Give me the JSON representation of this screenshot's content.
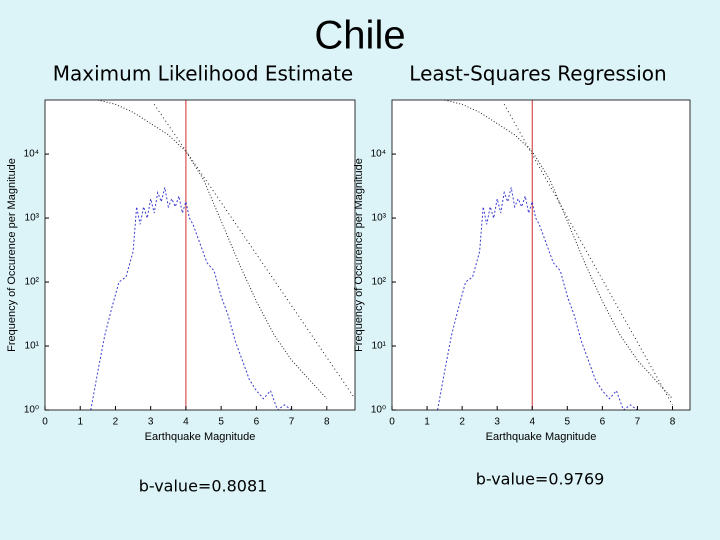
{
  "title": "Chile",
  "chart_data": [
    {
      "type": "line",
      "subtitle": "Maximum Likelihood Estimate",
      "xlabel": "Earthquake Magnitude",
      "ylabel": "Frequency of Occurence per Magnitude",
      "annotation": "b-value=0.8081",
      "xlim": [
        0,
        8.8
      ],
      "xticks": [
        0,
        1,
        2,
        3,
        4,
        5,
        6,
        7,
        8
      ],
      "ylim": [
        1,
        70000
      ],
      "ylog": true,
      "yticks": [
        {
          "value": 1,
          "label": "10⁰"
        },
        {
          "value": 10,
          "label": "10¹"
        },
        {
          "value": 100,
          "label": "10²"
        },
        {
          "value": 1000,
          "label": "10³"
        },
        {
          "value": 10000,
          "label": "10⁴"
        }
      ],
      "vline": 4,
      "vline_color": "#d03030",
      "series": [
        {
          "color": "#3a3ad0",
          "dash": "2,2",
          "x": [
            1.3,
            1.5,
            1.7,
            1.9,
            2.1,
            2.3,
            2.5,
            2.6,
            2.7,
            2.8,
            2.9,
            3.0,
            3.1,
            3.2,
            3.3,
            3.4,
            3.5,
            3.6,
            3.7,
            3.8,
            3.9,
            4.0,
            4.1,
            4.2,
            4.4,
            4.6,
            4.8,
            5.0,
            5.2,
            5.4,
            5.6,
            5.8,
            6.0,
            6.2,
            6.4,
            6.6,
            6.8,
            7.0
          ],
          "values": [
            1,
            4,
            15,
            40,
            100,
            120,
            300,
            1500,
            800,
            1500,
            1000,
            2000,
            1200,
            2500,
            1800,
            3000,
            1500,
            2000,
            1500,
            2200,
            1200,
            1800,
            1000,
            800,
            400,
            200,
            150,
            60,
            30,
            12,
            6,
            3,
            2,
            1.5,
            2,
            1,
            1.2,
            1
          ]
        },
        {
          "color": "#222222",
          "dash": "1,2",
          "x": [
            1.5,
            2.0,
            2.5,
            3.0,
            3.5,
            4.0,
            4.5,
            5.0,
            5.5,
            6.0,
            6.5,
            7.0,
            7.5,
            8.0
          ],
          "values": [
            70000,
            60000,
            45000,
            30000,
            20000,
            11000,
            4000,
            900,
            200,
            50,
            15,
            6,
            3,
            1.5
          ]
        },
        {
          "color": "#222222",
          "dash": "1,3",
          "x": [
            3.1,
            8.8
          ],
          "values": [
            60000,
            1.5
          ]
        }
      ]
    },
    {
      "type": "line",
      "subtitle": "Least-Squares Regression",
      "xlabel": "Earthquake Magnitude",
      "ylabel": "Frequency of Occurence per Magnitude",
      "annotation": "b-value=0.9769",
      "xlim": [
        0,
        8.5
      ],
      "xticks": [
        0,
        1,
        2,
        3,
        4,
        5,
        6,
        7,
        8
      ],
      "ylim": [
        1,
        70000
      ],
      "ylog": true,
      "yticks": [
        {
          "value": 1,
          "label": "10⁰"
        },
        {
          "value": 10,
          "label": "10¹"
        },
        {
          "value": 100,
          "label": "10²"
        },
        {
          "value": 1000,
          "label": "10³"
        },
        {
          "value": 10000,
          "label": "10⁴"
        }
      ],
      "vline": 4,
      "vline_color": "#d03030",
      "series": [
        {
          "color": "#3a3ad0",
          "dash": "2,2",
          "x": [
            1.3,
            1.5,
            1.7,
            1.9,
            2.1,
            2.3,
            2.5,
            2.6,
            2.7,
            2.8,
            2.9,
            3.0,
            3.1,
            3.2,
            3.3,
            3.4,
            3.5,
            3.6,
            3.7,
            3.8,
            3.9,
            4.0,
            4.1,
            4.2,
            4.4,
            4.6,
            4.8,
            5.0,
            5.2,
            5.4,
            5.6,
            5.8,
            6.0,
            6.2,
            6.4,
            6.6,
            6.8,
            7.0
          ],
          "values": [
            1,
            4,
            15,
            40,
            100,
            120,
            300,
            1500,
            800,
            1500,
            1000,
            2000,
            1200,
            2500,
            1800,
            3000,
            1500,
            2000,
            1500,
            2200,
            1200,
            1800,
            1000,
            800,
            400,
            200,
            150,
            60,
            30,
            12,
            6,
            3,
            2,
            1.5,
            2,
            1,
            1.2,
            1
          ]
        },
        {
          "color": "#222222",
          "dash": "1,2",
          "x": [
            1.5,
            2.0,
            2.5,
            3.0,
            3.5,
            4.0,
            4.5,
            5.0,
            5.5,
            6.0,
            6.5,
            7.0,
            7.5,
            8.0
          ],
          "values": [
            70000,
            60000,
            45000,
            30000,
            20000,
            11000,
            4000,
            900,
            200,
            50,
            15,
            6,
            3,
            1.5
          ]
        },
        {
          "color": "#222222",
          "dash": "1,3",
          "x": [
            3.2,
            8.0
          ],
          "values": [
            60000,
            1.2
          ]
        }
      ]
    }
  ]
}
